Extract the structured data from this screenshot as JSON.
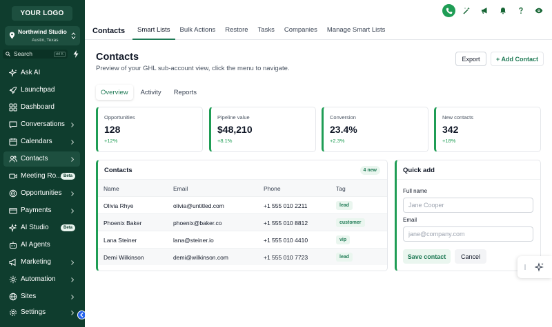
{
  "sidebar": {
    "logo": "YOUR LOGO",
    "account": {
      "name": "Northwind Studio",
      "location": "Austin, Texas"
    },
    "search": {
      "label": "Search",
      "shortcut": "ctrl K"
    },
    "items": [
      {
        "label": "Ask AI",
        "icon": "sparkle-icon"
      },
      {
        "label": "Launchpad",
        "icon": "rocket-icon"
      },
      {
        "label": "Dashboard",
        "icon": "grid-icon"
      },
      {
        "label": "Conversations",
        "icon": "chat-icon"
      },
      {
        "label": "Calendars",
        "icon": "calendar-icon"
      },
      {
        "label": "Contacts",
        "icon": "users-icon"
      },
      {
        "label": "Meeting Ro...",
        "icon": "video-icon",
        "badge": "Beta"
      },
      {
        "label": "Opportunities",
        "icon": "funnel-icon"
      },
      {
        "label": "Payments",
        "icon": "card-icon"
      },
      {
        "label": "AI Studio",
        "icon": "sparkles-icon",
        "badge": "Beta"
      },
      {
        "label": "AI Agents",
        "icon": "bot-icon"
      },
      {
        "label": "Marketing",
        "icon": "megaphone-icon"
      },
      {
        "label": "Automation",
        "icon": "gear-icon"
      },
      {
        "label": "Sites",
        "icon": "globe-icon"
      },
      {
        "label": "Settings",
        "icon": "settings-icon"
      }
    ]
  },
  "topbar": {
    "section": "Contacts",
    "tabs": [
      "Smart Lists",
      "Bulk Actions",
      "Restore",
      "Tasks",
      "Companies",
      "Manage Smart Lists"
    ]
  },
  "page": {
    "title": "Contacts",
    "subtitle": "Preview of your GHL sub-account view, click the menu to navigate.",
    "export_label": "Export",
    "add_label": "+ Add Contact",
    "tabs": [
      "Overview",
      "Activity",
      "Reports"
    ]
  },
  "kpis": [
    {
      "label": "Opportunities",
      "value": "128",
      "delta": "+12%"
    },
    {
      "label": "Pipeline value",
      "value": "$48,210",
      "delta": "+8.1%"
    },
    {
      "label": "Conversion",
      "value": "23.4%",
      "delta": "+2.3%"
    },
    {
      "label": "New contacts",
      "value": "342",
      "delta": "+18%"
    }
  ],
  "contacts_table": {
    "title": "Contacts",
    "badge": "4 new",
    "columns": [
      "Name",
      "Email",
      "Phone",
      "Tag"
    ],
    "rows": [
      {
        "name": "Olivia Rhye",
        "email": "olivia@untitled.com",
        "phone": "+1 555 010 2211",
        "tag": "lead"
      },
      {
        "name": "Phoenix Baker",
        "email": "phoenix@baker.co",
        "phone": "+1 555 010 8812",
        "tag": "customer"
      },
      {
        "name": "Lana Steiner",
        "email": "lana@steiner.io",
        "phone": "+1 555 010 4410",
        "tag": "vip"
      },
      {
        "name": "Demi Wilkinson",
        "email": "demi@wilkinson.com",
        "phone": "+1 555 010 7723",
        "tag": "lead"
      }
    ]
  },
  "quick_add": {
    "title": "Quick add",
    "full_name_label": "Full name",
    "full_name_placeholder": "Jane Cooper",
    "email_label": "Email",
    "email_placeholder": "jane@company.com",
    "save_label": "Save contact",
    "cancel_label": "Cancel"
  },
  "colors": {
    "sidebar": "#0f3d2e",
    "accent": "#1f9d55",
    "accent_dark": "#1f7a55"
  }
}
